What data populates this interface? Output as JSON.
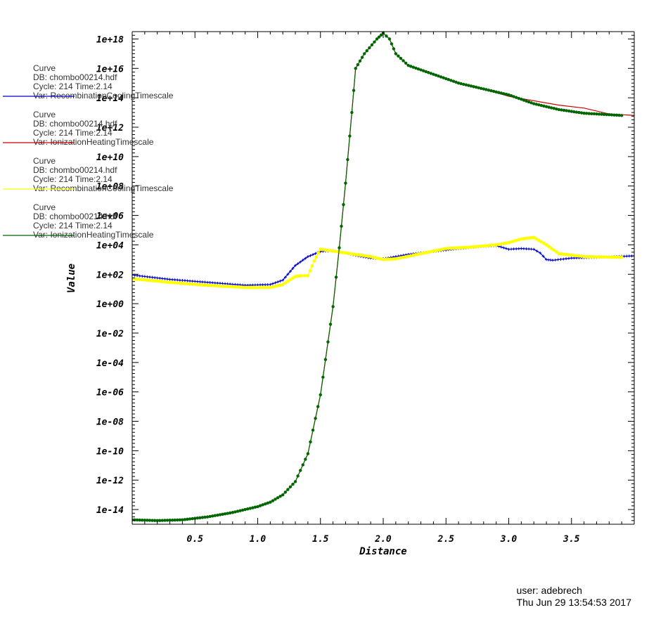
{
  "chart_data": {
    "type": "line",
    "xlabel": "Distance",
    "ylabel": "Value",
    "xlim": [
      0.0,
      4.0
    ],
    "ylim": [
      -15.0,
      18.5
    ],
    "y_scale": "log",
    "x_ticks": [
      "0.5",
      "1.0",
      "1.5",
      "2.0",
      "2.5",
      "3.0",
      "3.5"
    ],
    "x_tick_values": [
      0.5,
      1.0,
      1.5,
      2.0,
      2.5,
      3.0,
      3.5
    ],
    "y_ticks": [
      "1e-14",
      "1e-12",
      "1e-10",
      "1e-08",
      "1e-06",
      "1e-04",
      "1e-02",
      "1e+00",
      "1e+02",
      "1e+04",
      "1e+06",
      "1e+08",
      "1e+10",
      "1e+12",
      "1e+14",
      "1e+16",
      "1e+18"
    ],
    "y_tick_values": [
      -14,
      -12,
      -10,
      -8,
      -6,
      -4,
      -2,
      0,
      2,
      4,
      6,
      8,
      10,
      12,
      14,
      16,
      18
    ],
    "grid": false,
    "series": [
      {
        "legend": [
          "Curve",
          "DB: chombo00214.hdf",
          "Cycle: 214       Time:2.14",
          "Var: RecombinationCoolingTimescale"
        ],
        "color": "#0000cc",
        "marker": "plus",
        "x": [
          0.0,
          0.3,
          0.6,
          0.9,
          1.1,
          1.2,
          1.3,
          1.4,
          1.5,
          1.6,
          1.7,
          1.8,
          1.9,
          2.0,
          2.1,
          2.2,
          2.4,
          2.6,
          2.8,
          2.9,
          3.0,
          3.1,
          3.2,
          3.25,
          3.3,
          3.35,
          3.5,
          3.7,
          4.0
        ],
        "y": [
          1.95,
          1.65,
          1.45,
          1.25,
          1.3,
          1.6,
          2.6,
          3.2,
          3.55,
          3.6,
          3.45,
          3.25,
          3.1,
          3.05,
          3.2,
          3.35,
          3.55,
          3.75,
          3.9,
          3.95,
          3.7,
          3.75,
          3.7,
          3.45,
          3.0,
          2.95,
          3.1,
          3.15,
          3.25
        ]
      },
      {
        "legend": [
          "Curve",
          "DB: chombo00214.hdf",
          "Cycle: 214       Time:2.14",
          "Var: IonizationHeatingTimescale"
        ],
        "color": "#cc0000",
        "marker": "none",
        "x": [
          0.0,
          0.2,
          0.4,
          0.6,
          0.8,
          1.0,
          1.1,
          1.2,
          1.3,
          1.4,
          1.5,
          1.6,
          1.65,
          1.7,
          1.75,
          1.78,
          1.85,
          1.95,
          2.0,
          2.05,
          2.1,
          2.2,
          2.4,
          2.6,
          2.8,
          3.0,
          3.2,
          3.4,
          3.6,
          3.8,
          4.0
        ],
        "y": [
          -14.7,
          -14.75,
          -14.7,
          -14.5,
          -14.2,
          -13.8,
          -13.5,
          -13.0,
          -12.1,
          -10.2,
          -6.2,
          -0.2,
          3.8,
          8.2,
          13.0,
          16.0,
          17.0,
          18.0,
          18.4,
          18.0,
          17.0,
          16.2,
          15.6,
          15.0,
          14.6,
          14.1,
          13.8,
          13.5,
          13.3,
          12.9,
          12.8
        ]
      },
      {
        "legend": [
          "Curve",
          "DB: chombo00214.hdf",
          "Cycle: 214       Time:2.14",
          "Var: RecombinationCoolingTimescale"
        ],
        "color": "#ffff00",
        "marker": "circle",
        "x": [
          0.0,
          0.3,
          0.6,
          0.9,
          1.1,
          1.2,
          1.3,
          1.35,
          1.4,
          1.45,
          1.5,
          1.7,
          1.9,
          2.0,
          2.1,
          2.3,
          2.5,
          2.7,
          2.9,
          3.0,
          3.1,
          3.2,
          3.3,
          3.4,
          3.6,
          3.9
        ],
        "y": [
          1.7,
          1.45,
          1.25,
          1.1,
          1.1,
          1.3,
          1.85,
          1.9,
          1.9,
          2.9,
          3.7,
          3.45,
          3.2,
          3.0,
          3.05,
          3.4,
          3.75,
          3.85,
          4.0,
          4.15,
          4.4,
          4.5,
          4.0,
          3.4,
          3.2,
          3.15
        ]
      },
      {
        "legend": [
          "Curve",
          "DB: chombo00214.hdf",
          "Cycle: 214       Time:2.14",
          "Var: IonizationHeatingTimescale"
        ],
        "color": "#006600",
        "marker": "dot",
        "x": [
          0.0,
          0.2,
          0.4,
          0.6,
          0.8,
          1.0,
          1.1,
          1.2,
          1.3,
          1.4,
          1.5,
          1.6,
          1.65,
          1.7,
          1.75,
          1.78,
          1.85,
          1.95,
          2.0,
          2.05,
          2.1,
          2.2,
          2.4,
          2.6,
          2.8,
          3.0,
          3.2,
          3.4,
          3.6,
          3.8,
          3.9
        ],
        "y": [
          -14.7,
          -14.75,
          -14.7,
          -14.5,
          -14.2,
          -13.8,
          -13.5,
          -13.0,
          -12.1,
          -10.2,
          -6.2,
          -0.2,
          3.8,
          8.2,
          13.0,
          16.0,
          17.0,
          18.0,
          18.4,
          18.0,
          17.0,
          16.2,
          15.6,
          15.0,
          14.6,
          14.2,
          13.6,
          13.2,
          12.95,
          12.85,
          12.8
        ]
      }
    ]
  },
  "footer": {
    "user": "user: adebrech",
    "timestamp": "Thu Jun 29 13:54:53 2017"
  }
}
